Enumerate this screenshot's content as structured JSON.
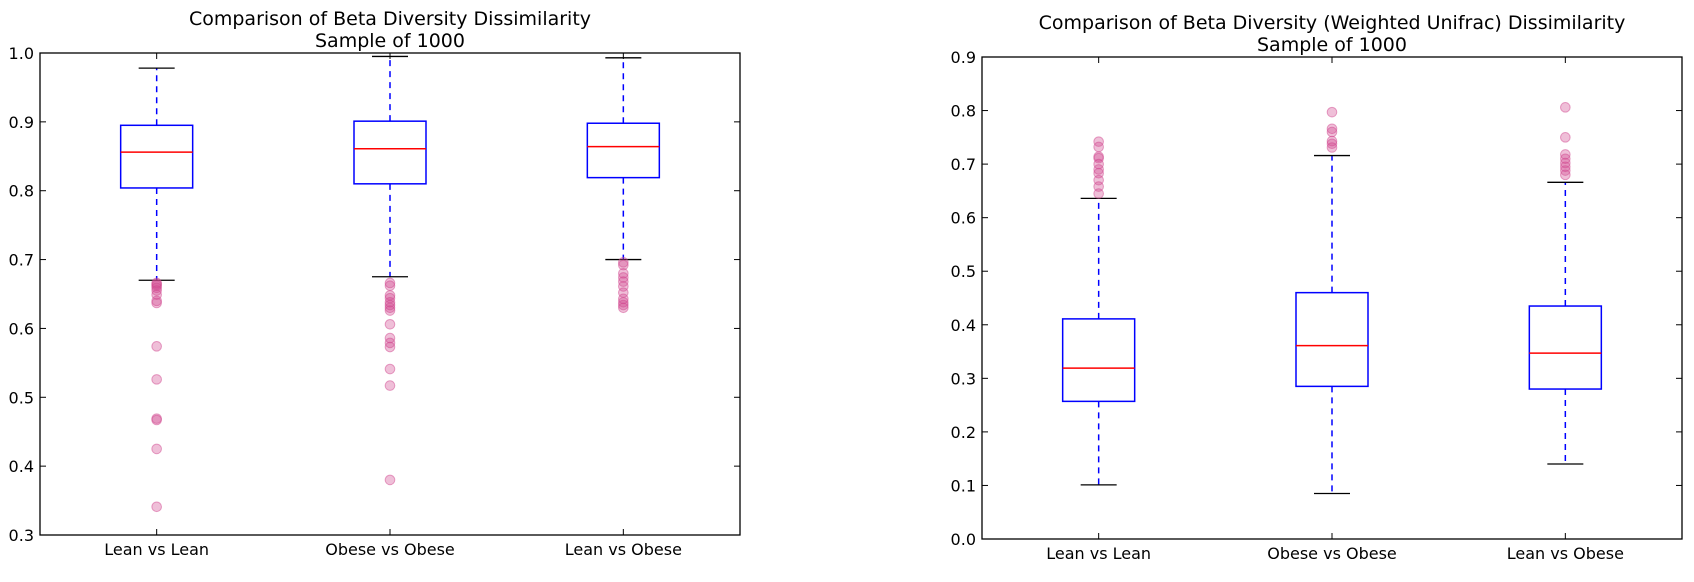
{
  "chart_data": [
    {
      "type": "box",
      "title": "Comparison of Beta Diversity Dissimilarity",
      "subtitle": "Sample of 1000",
      "categories": [
        "Lean vs Lean",
        "Obese vs Obese",
        "Lean vs Obese"
      ],
      "ylim": [
        0.3,
        1.0
      ],
      "yticks": [
        "0.3",
        "0.4",
        "0.5",
        "0.6",
        "0.7",
        "0.8",
        "0.9",
        "1.0"
      ],
      "boxes": [
        {
          "whisker_low": 0.67,
          "q1": 0.804,
          "median": 0.856,
          "q3": 0.895,
          "whisker_high": 0.978,
          "outliers": [
            0.666,
            0.664,
            0.662,
            0.659,
            0.655,
            0.649,
            0.64,
            0.637,
            0.574,
            0.526,
            0.469,
            0.467,
            0.425,
            0.341
          ]
        },
        {
          "whisker_low": 0.675,
          "q1": 0.81,
          "median": 0.861,
          "q3": 0.901,
          "whisker_high": 0.995,
          "outliers": [
            0.666,
            0.662,
            0.648,
            0.644,
            0.638,
            0.634,
            0.63,
            0.626,
            0.606,
            0.586,
            0.579,
            0.573,
            0.541,
            0.517,
            0.38
          ]
        },
        {
          "whisker_low": 0.7,
          "q1": 0.819,
          "median": 0.864,
          "q3": 0.898,
          "whisker_high": 0.993,
          "outliers": [
            0.696,
            0.692,
            0.68,
            0.674,
            0.668,
            0.661,
            0.652,
            0.643,
            0.638,
            0.634,
            0.63
          ]
        }
      ],
      "colors": {
        "box": "#0000ff",
        "median": "#ff0000",
        "whisker": "#0000ff",
        "cap": "#000000",
        "outlier": "#d1488f"
      },
      "grid": false
    },
    {
      "type": "box",
      "title": "Comparison of Beta Diversity (Weighted Unifrac) Dissimilarity",
      "subtitle": "Sample of 1000",
      "categories": [
        "Lean vs Lean",
        "Obese vs Obese",
        "Lean vs Obese"
      ],
      "ylim": [
        0.0,
        0.9
      ],
      "yticks": [
        "0.0",
        "0.1",
        "0.2",
        "0.3",
        "0.4",
        "0.5",
        "0.6",
        "0.7",
        "0.8",
        "0.9"
      ],
      "boxes": [
        {
          "whisker_low": 0.101,
          "q1": 0.257,
          "median": 0.319,
          "q3": 0.411,
          "whisker_high": 0.636,
          "outliers": [
            0.645,
            0.658,
            0.67,
            0.683,
            0.69,
            0.7,
            0.711,
            0.714,
            0.732,
            0.742
          ]
        },
        {
          "whisker_low": 0.085,
          "q1": 0.285,
          "median": 0.361,
          "q3": 0.46,
          "whisker_high": 0.716,
          "outliers": [
            0.731,
            0.738,
            0.743,
            0.76,
            0.766,
            0.797
          ]
        },
        {
          "whisker_low": 0.14,
          "q1": 0.28,
          "median": 0.347,
          "q3": 0.435,
          "whisker_high": 0.666,
          "outliers": [
            0.68,
            0.688,
            0.695,
            0.702,
            0.71,
            0.718,
            0.75,
            0.806
          ]
        }
      ],
      "colors": {
        "box": "#0000ff",
        "median": "#ff0000",
        "whisker": "#0000ff",
        "cap": "#000000",
        "outlier": "#d1488f"
      },
      "grid": false
    }
  ]
}
